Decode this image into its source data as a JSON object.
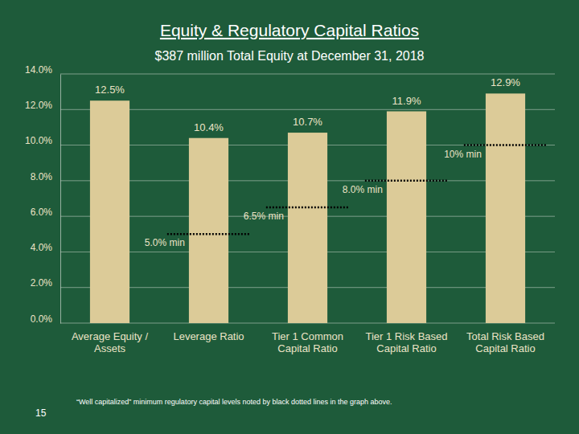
{
  "chart_data": {
    "type": "bar",
    "title": "Equity & Regulatory Capital Ratios",
    "subtitle": "$387 million Total Equity at December 31, 2018",
    "categories": [
      "Average Equity / Assets",
      "Leverage Ratio",
      "Tier 1 Common Capital Ratio",
      "Tier 1 Risk Based Capital Ratio",
      "Total Risk Based Capital Ratio"
    ],
    "values": [
      12.5,
      10.4,
      10.7,
      11.9,
      12.9
    ],
    "value_labels": [
      "12.5%",
      "10.4%",
      "10.7%",
      "11.9%",
      "12.9%"
    ],
    "minimums": [
      null,
      5.0,
      6.5,
      8.0,
      10.0
    ],
    "minimum_labels": [
      null,
      "5.0% min",
      "6.5% min",
      "8.0% min",
      "10% min"
    ],
    "color": "#dccb98",
    "data_labels": true,
    "grid": true,
    "ylim": [
      0,
      14
    ],
    "yticks": [
      {
        "value": 0,
        "label": "0.0%"
      },
      {
        "value": 2,
        "label": "2.0%"
      },
      {
        "value": 4,
        "label": "4.0%"
      },
      {
        "value": 6,
        "label": "6.0%"
      },
      {
        "value": 8,
        "label": "8.0%"
      },
      {
        "value": 10,
        "label": "10.0%"
      },
      {
        "value": 12,
        "label": "12.0%"
      },
      {
        "value": 14,
        "label": "14.0%"
      }
    ],
    "footnote": "“Well capitalized” minimum regulatory capital levels noted by black dotted lines in the graph above.",
    "page_number": "15"
  }
}
